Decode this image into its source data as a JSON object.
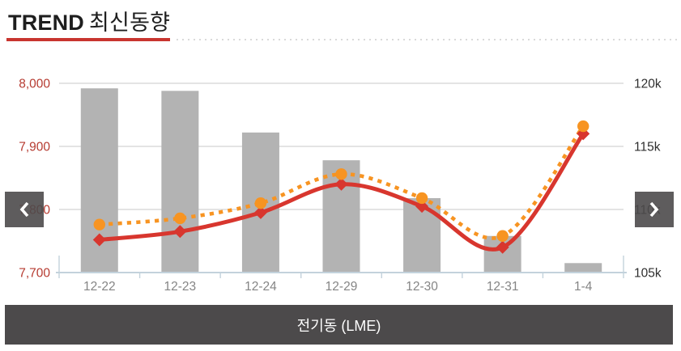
{
  "header": {
    "title_en": "TREND",
    "title_ko": "최신동향"
  },
  "footer": {
    "tab_label": "전기동 (LME)"
  },
  "colors": {
    "accent_red": "#c8352f",
    "bar": "#b3b3b3",
    "line_solid": "#d8362e",
    "line_dotted": "#f79422",
    "left_axis_label": "#b63b31",
    "right_axis_label": "#2e2e2e",
    "x_axis_label": "#858585",
    "gridline": "#d4d4d4",
    "axis_line": "#c3d2dc",
    "panel_dark": "#4c4a4b"
  },
  "chart_data": {
    "type": "bar",
    "subtype": "combo-bar-and-two-lines",
    "categories": [
      "12-22",
      "12-23",
      "12-24",
      "12-29",
      "12-30",
      "12-31",
      "1-4"
    ],
    "series": [
      {
        "name": "bars",
        "type": "bar",
        "axis": "left",
        "values": [
          7992,
          7988,
          7922,
          7878,
          7818,
          7758,
          7715
        ]
      },
      {
        "name": "line-solid-red",
        "type": "line",
        "axis": "left",
        "style": "solid",
        "marker": "diamond",
        "values": [
          7752,
          7765,
          7795,
          7840,
          7805,
          7740,
          7920
        ]
      },
      {
        "name": "line-dotted-orange",
        "type": "line",
        "axis": "right",
        "style": "dotted",
        "marker": "circle",
        "values": [
          108.8,
          109.3,
          110.5,
          112.8,
          110.9,
          107.9,
          116.6
        ]
      }
    ],
    "left_axis": {
      "min": 7700,
      "max": 8000,
      "ticks": [
        {
          "label": "7,700",
          "value": 7700
        },
        {
          "label": "7,800",
          "value": 7800
        },
        {
          "label": "7,900",
          "value": 7900
        },
        {
          "label": "8,000",
          "value": 8000
        }
      ]
    },
    "right_axis": {
      "min": 105,
      "max": 120,
      "ticks": [
        {
          "label": "105k",
          "value": 105
        },
        {
          "label": "110k",
          "value": 110
        },
        {
          "label": "115k",
          "value": 115
        },
        {
          "label": "120k",
          "value": 120
        }
      ]
    },
    "grid": "horizontal-only",
    "legend": "none"
  }
}
